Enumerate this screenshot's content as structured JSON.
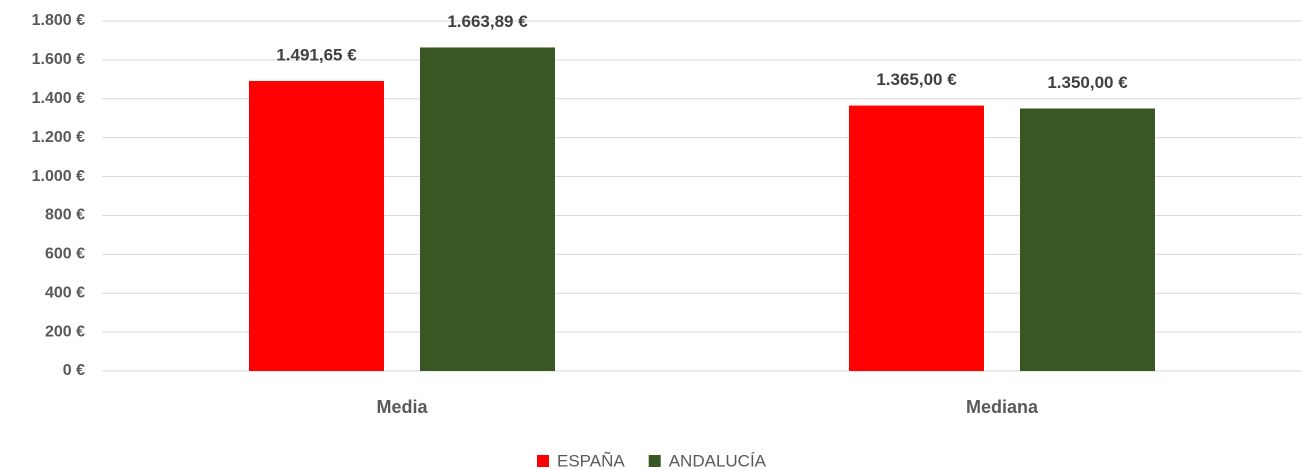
{
  "chart_data": {
    "type": "bar",
    "categories": [
      "Media",
      "Mediana"
    ],
    "series": [
      {
        "name": "ESPAÑA",
        "color": "#ff0000",
        "values": [
          1491.65,
          1365.0
        ],
        "value_labels": [
          "1.491,65 €",
          "1.365,00 €"
        ]
      },
      {
        "name": "ANDALUCÍA",
        "color": "#385723",
        "values": [
          1663.89,
          1350.0
        ],
        "value_labels": [
          "1.663,89 €",
          "1.350,00 €"
        ]
      }
    ],
    "ylim": [
      0,
      1800
    ],
    "yticks": [
      {
        "value": 0,
        "label": "0 €"
      },
      {
        "value": 200,
        "label": "200 €"
      },
      {
        "value": 400,
        "label": "400 €"
      },
      {
        "value": 600,
        "label": "600 €"
      },
      {
        "value": 800,
        "label": "800 €"
      },
      {
        "value": 1000,
        "label": "1.000 €"
      },
      {
        "value": 1200,
        "label": "1.200 €"
      },
      {
        "value": 1400,
        "label": "1.400 €"
      },
      {
        "value": 1600,
        "label": "1.600 €"
      },
      {
        "value": 1800,
        "label": "1.800 €"
      }
    ],
    "grid": true,
    "legend": "bottom"
  }
}
